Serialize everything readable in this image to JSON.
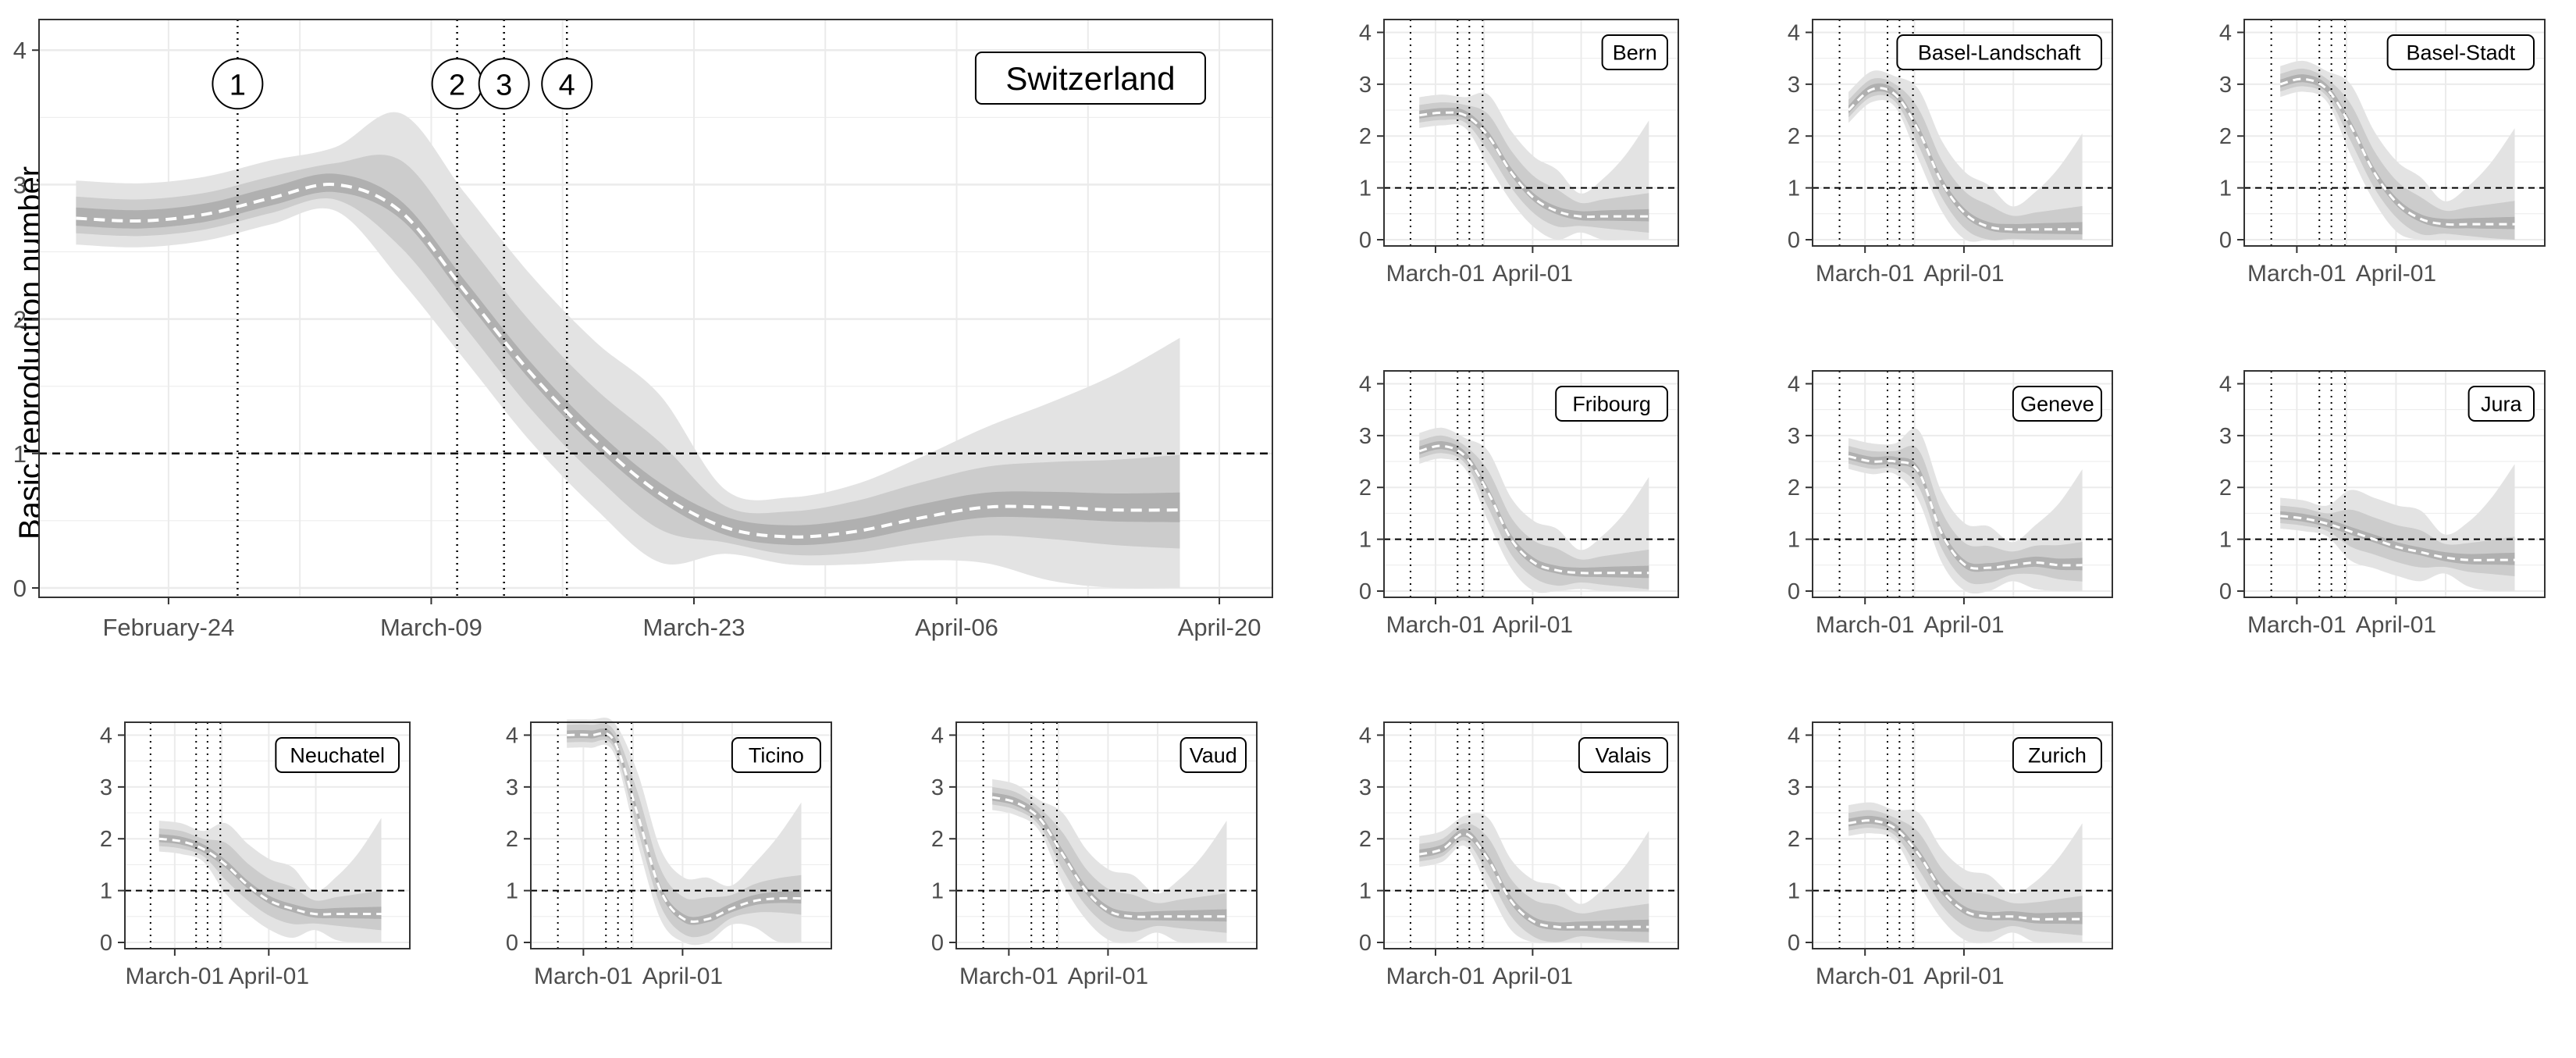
{
  "figure": {
    "ylabel": "Basic reproduction number"
  },
  "colors": {
    "band_outer": "#e3e3e3",
    "band_inner": "#cccccc",
    "band_core": "#b0b0b0",
    "median": "#ffffff",
    "grid": "#ebebeb",
    "axis": "#333333",
    "reference_line": "#000000"
  },
  "chart_data": [
    {
      "panel": "Switzerland",
      "type": "line",
      "label": "Switzerland",
      "x_ticks": [
        "February-24",
        "March-09",
        "March-23",
        "April-06",
        "April-20"
      ],
      "y_ticks": [
        0,
        1,
        2,
        3,
        4
      ],
      "ylim": [
        0,
        4.2
      ],
      "reference_line": 1,
      "interventions": [
        {
          "marker": "1",
          "day": 28
        },
        {
          "marker": "2",
          "day": 13
        },
        {
          "marker": "3",
          "day": 16
        },
        {
          "marker": "4",
          "day": 20
        }
      ],
      "series": [
        {
          "name": "median",
          "values": [
            2.75,
            2.73,
            2.78,
            2.9,
            3.0,
            2.8,
            2.2,
            1.6,
            1.1,
            0.7,
            0.45,
            0.38,
            0.42,
            0.52,
            0.6,
            0.6,
            0.58,
            0.58
          ]
        }
      ]
    },
    {
      "panel": "Bern",
      "type": "line",
      "label": "Bern",
      "y_ticks": [
        0,
        1,
        2,
        3,
        4
      ],
      "x_ticks": [
        "March-01",
        "April-01"
      ],
      "reference_line": 1,
      "series": [
        {
          "name": "median",
          "values": [
            2.4,
            2.45,
            2.4,
            2.0,
            1.3,
            0.8,
            0.55,
            0.45,
            0.45,
            0.45,
            0.45
          ]
        }
      ]
    },
    {
      "panel": "Basel-Landschaft",
      "type": "line",
      "label": "Basel-Landschaft",
      "y_ticks": [
        0,
        1,
        2,
        3,
        4
      ],
      "x_ticks": [
        "March-01",
        "April-01"
      ],
      "reference_line": 1,
      "series": [
        {
          "name": "median",
          "values": [
            2.5,
            2.9,
            2.8,
            2.1,
            1.1,
            0.5,
            0.25,
            0.2,
            0.2,
            0.2,
            0.2
          ]
        }
      ]
    },
    {
      "panel": "Basel-Stadt",
      "type": "line",
      "label": "Basel-Stadt",
      "y_ticks": [
        0,
        1,
        2,
        3,
        4
      ],
      "x_ticks": [
        "March-01",
        "April-01"
      ],
      "reference_line": 1,
      "series": [
        {
          "name": "median",
          "values": [
            3.0,
            3.1,
            2.9,
            2.2,
            1.3,
            0.7,
            0.4,
            0.3,
            0.3,
            0.3,
            0.3
          ]
        }
      ]
    },
    {
      "panel": "Fribourg",
      "type": "line",
      "label": "Fribourg",
      "y_ticks": [
        0,
        1,
        2,
        3,
        4
      ],
      "x_ticks": [
        "March-01",
        "April-01"
      ],
      "reference_line": 1,
      "series": [
        {
          "name": "median",
          "values": [
            2.7,
            2.8,
            2.6,
            1.9,
            1.0,
            0.55,
            0.4,
            0.35,
            0.35,
            0.35,
            0.35
          ]
        }
      ]
    },
    {
      "panel": "Geneve",
      "type": "line",
      "label": "Geneve",
      "y_ticks": [
        0,
        1,
        2,
        3,
        4
      ],
      "x_ticks": [
        "March-01",
        "April-01"
      ],
      "reference_line": 1,
      "series": [
        {
          "name": "median",
          "values": [
            2.6,
            2.5,
            2.5,
            2.3,
            1.1,
            0.5,
            0.45,
            0.5,
            0.55,
            0.5,
            0.5
          ]
        }
      ]
    },
    {
      "panel": "Jura",
      "type": "line",
      "label": "Jura",
      "y_ticks": [
        0,
        1,
        2,
        3,
        4
      ],
      "x_ticks": [
        "March-01",
        "April-01"
      ],
      "reference_line": 1,
      "series": [
        {
          "name": "median",
          "values": [
            1.45,
            1.4,
            1.3,
            1.15,
            1.0,
            0.85,
            0.75,
            0.65,
            0.6,
            0.6,
            0.6
          ]
        }
      ]
    },
    {
      "panel": "Neuchatel",
      "type": "line",
      "label": "Neuchatel",
      "y_ticks": [
        0,
        1,
        2,
        3,
        4
      ],
      "x_ticks": [
        "March-01",
        "April-01"
      ],
      "reference_line": 1,
      "series": [
        {
          "name": "median",
          "values": [
            2.0,
            1.95,
            1.8,
            1.5,
            1.1,
            0.8,
            0.65,
            0.55,
            0.55,
            0.55,
            0.55
          ]
        }
      ]
    },
    {
      "panel": "Ticino",
      "type": "line",
      "label": "Ticino",
      "y_ticks": [
        0,
        1,
        2,
        3,
        4
      ],
      "x_ticks": [
        "March-01",
        "April-01"
      ],
      "reference_line": 1,
      "series": [
        {
          "name": "median",
          "values": [
            4.0,
            4.0,
            3.9,
            2.5,
            1.0,
            0.45,
            0.45,
            0.65,
            0.8,
            0.85,
            0.85
          ]
        }
      ]
    },
    {
      "panel": "Vaud",
      "type": "line",
      "label": "Vaud",
      "y_ticks": [
        0,
        1,
        2,
        3,
        4
      ],
      "x_ticks": [
        "March-01",
        "April-01"
      ],
      "reference_line": 1,
      "series": [
        {
          "name": "median",
          "values": [
            2.8,
            2.7,
            2.4,
            1.7,
            1.0,
            0.6,
            0.5,
            0.5,
            0.5,
            0.5,
            0.5
          ]
        }
      ]
    },
    {
      "panel": "Valais",
      "type": "line",
      "label": "Valais",
      "y_ticks": [
        0,
        1,
        2,
        3,
        4
      ],
      "x_ticks": [
        "March-01",
        "April-01"
      ],
      "reference_line": 1,
      "series": [
        {
          "name": "median",
          "values": [
            1.7,
            1.8,
            2.1,
            1.6,
            0.8,
            0.4,
            0.3,
            0.3,
            0.3,
            0.3,
            0.3
          ]
        }
      ]
    },
    {
      "panel": "Zurich",
      "type": "line",
      "label": "Zurich",
      "y_ticks": [
        0,
        1,
        2,
        3,
        4
      ],
      "x_ticks": [
        "March-01",
        "April-01"
      ],
      "reference_line": 1,
      "series": [
        {
          "name": "median",
          "values": [
            2.3,
            2.35,
            2.2,
            1.7,
            1.0,
            0.6,
            0.5,
            0.5,
            0.45,
            0.45,
            0.45
          ]
        }
      ]
    }
  ]
}
